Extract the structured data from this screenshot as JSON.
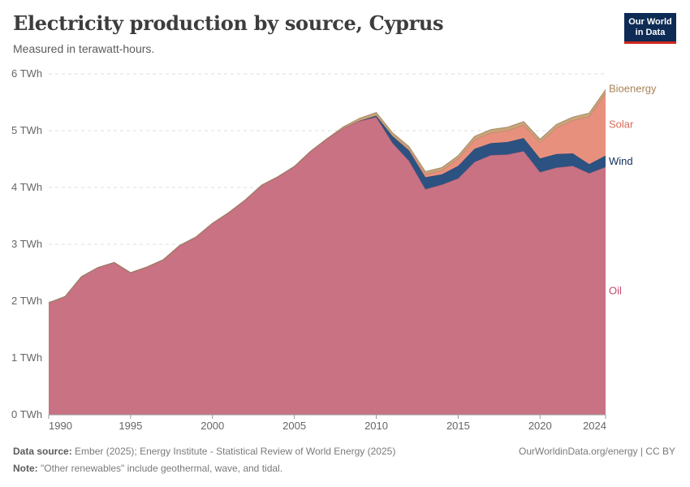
{
  "header": {
    "title": "Electricity production by source, Cyprus",
    "subtitle": "Measured in terawatt-hours."
  },
  "logo": {
    "line1": "Our World",
    "line2": "in Data"
  },
  "footer": {
    "source_label": "Data source:",
    "source_text": "Ember (2025); Energy Institute - Statistical Review of World Energy (2025)",
    "note_label": "Note:",
    "note_text": "\"Other renewables\" include geothermal, wave, and tidal.",
    "attribution": "OurWorldinData.org/energy | CC BY"
  },
  "chart_data": {
    "type": "area",
    "stacked": true,
    "title": "Electricity production by source, Cyprus",
    "subtitle": "Measured in terawatt-hours.",
    "unit": "TWh",
    "xlim": [
      1990,
      2024
    ],
    "ylim": [
      0,
      6
    ],
    "x_ticks": [
      1990,
      1995,
      2000,
      2005,
      2010,
      2015,
      2020,
      2024
    ],
    "y_ticks": [
      0,
      1,
      2,
      3,
      4,
      5,
      6
    ],
    "y_tick_labels": [
      "0 TWh",
      "1 TWh",
      "2 TWh",
      "3 TWh",
      "4 TWh",
      "5 TWh",
      "6 TWh"
    ],
    "grid": "horizontal dashed",
    "legend": "right, inline labels at series end",
    "x": [
      1990,
      1991,
      1992,
      1993,
      1994,
      1995,
      1996,
      1997,
      1998,
      1999,
      2000,
      2001,
      2002,
      2003,
      2004,
      2005,
      2006,
      2007,
      2008,
      2009,
      2010,
      2011,
      2012,
      2013,
      2014,
      2015,
      2016,
      2017,
      2018,
      2019,
      2020,
      2021,
      2022,
      2023,
      2024
    ],
    "series": [
      {
        "name": "Oil",
        "color": "#c97283",
        "label_color": "#c2486c",
        "values": [
          1.97,
          2.08,
          2.43,
          2.59,
          2.68,
          2.5,
          2.6,
          2.73,
          2.98,
          3.13,
          3.37,
          3.56,
          3.78,
          4.04,
          4.19,
          4.37,
          4.64,
          4.86,
          5.05,
          5.17,
          5.24,
          4.78,
          4.47,
          3.97,
          4.05,
          4.16,
          4.45,
          4.57,
          4.58,
          4.64,
          4.27,
          4.35,
          4.38,
          4.25,
          4.36
        ]
      },
      {
        "name": "Wind",
        "color": "#2c5282",
        "label_color": "#0f2e5a",
        "values": [
          0,
          0,
          0,
          0,
          0,
          0,
          0,
          0,
          0,
          0,
          0,
          0,
          0,
          0,
          0,
          0,
          0,
          0,
          0,
          0.01,
          0.03,
          0.12,
          0.18,
          0.21,
          0.18,
          0.22,
          0.23,
          0.21,
          0.22,
          0.23,
          0.24,
          0.24,
          0.22,
          0.16,
          0.2
        ]
      },
      {
        "name": "Solar",
        "color": "#e8907e",
        "label_color": "#d66a58",
        "values": [
          0,
          0,
          0,
          0,
          0,
          0,
          0,
          0,
          0,
          0,
          0,
          0,
          0,
          0,
          0,
          0,
          0,
          0,
          0,
          0,
          0,
          0.01,
          0.02,
          0.05,
          0.07,
          0.13,
          0.16,
          0.18,
          0.2,
          0.23,
          0.28,
          0.46,
          0.58,
          0.84,
          1.1
        ]
      },
      {
        "name": "Bioenergy",
        "color": "#c8a57a",
        "label_color": "#a8825a",
        "values": [
          0,
          0,
          0,
          0,
          0,
          0,
          0,
          0,
          0,
          0,
          0,
          0,
          0,
          0,
          0,
          0,
          0,
          0,
          0.02,
          0.04,
          0.05,
          0.05,
          0.05,
          0.05,
          0.05,
          0.05,
          0.06,
          0.06,
          0.06,
          0.06,
          0.06,
          0.06,
          0.06,
          0.06,
          0.06
        ]
      }
    ]
  }
}
